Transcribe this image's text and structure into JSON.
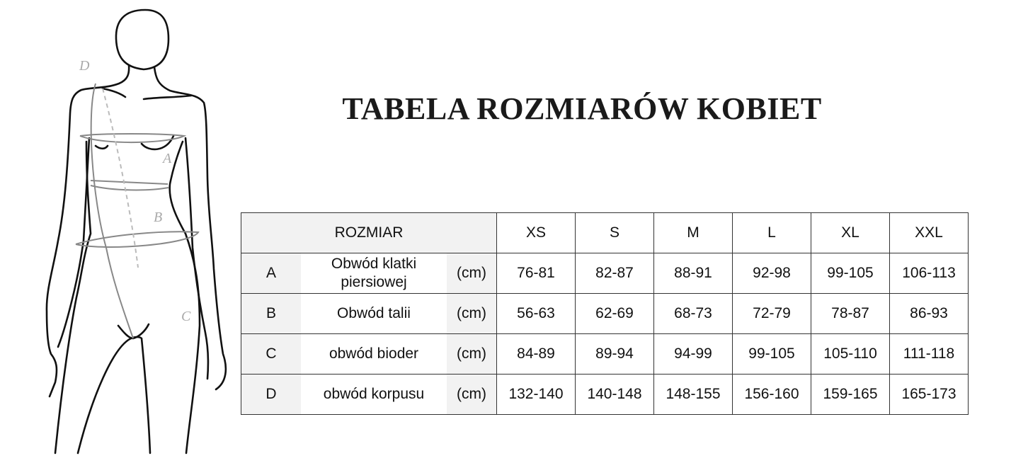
{
  "title": "TABELA ROZMIARÓW KOBIET",
  "figure": {
    "labels": [
      "A",
      "B",
      "C",
      "D"
    ]
  },
  "table": {
    "header_label": "ROZMIAR",
    "sizes": [
      "XS",
      "S",
      "M",
      "L",
      "XL",
      "XXL"
    ],
    "rows": [
      {
        "letter": "A",
        "label": "Obwód klatki piersiowej",
        "unit": "(cm)",
        "values": [
          "76-81",
          "82-87",
          "88-91",
          "92-98",
          "99-105",
          "106-113"
        ]
      },
      {
        "letter": "B",
        "label": "Obwód talii",
        "unit": "(cm)",
        "values": [
          "56-63",
          "62-69",
          "68-73",
          "72-79",
          "78-87",
          "86-93"
        ]
      },
      {
        "letter": "C",
        "label": "obwód bioder",
        "unit": "(cm)",
        "values": [
          "84-89",
          "89-94",
          "94-99",
          "99-105",
          "105-110",
          "111-118"
        ]
      },
      {
        "letter": "D",
        "label": "obwód korpusu",
        "unit": "(cm)",
        "values": [
          "132-140",
          "140-148",
          "148-155",
          "156-160",
          "159-165",
          "165-173"
        ]
      }
    ]
  }
}
